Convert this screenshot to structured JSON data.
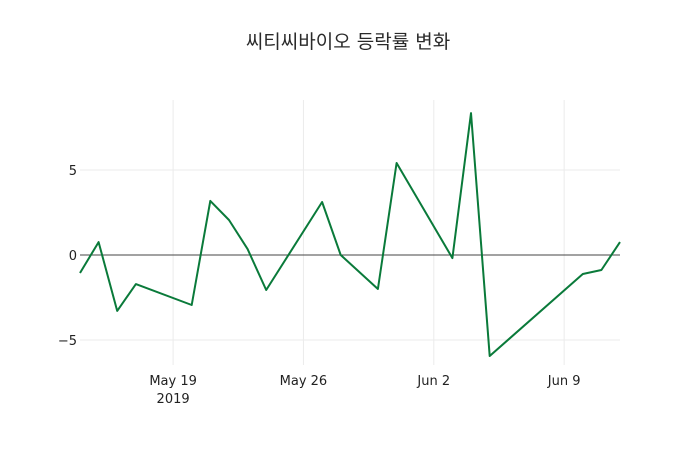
{
  "chart_data": {
    "type": "line",
    "title": "씨티씨바이오 등락률 변화",
    "xlabel": "",
    "ylabel": "",
    "x": [
      "2019-05-14",
      "2019-05-15",
      "2019-05-16",
      "2019-05-17",
      "2019-05-20",
      "2019-05-21",
      "2019-05-22",
      "2019-05-23",
      "2019-05-24",
      "2019-05-27",
      "2019-05-28",
      "2019-05-30",
      "2019-05-31",
      "2019-06-03",
      "2019-06-04",
      "2019-06-05",
      "2019-06-10",
      "2019-06-11",
      "2019-06-12"
    ],
    "series": [
      {
        "name": "등락률",
        "color": "#0a7a3a",
        "values": [
          -1.06,
          0.76,
          -3.29,
          -1.71,
          -2.94,
          3.18,
          2.06,
          0.35,
          -2.06,
          3.12,
          0.0,
          -2.0,
          5.41,
          -0.18,
          8.35,
          -5.94,
          -1.12,
          -0.88,
          0.76
        ]
      }
    ],
    "xlim": [
      "2019-05-14",
      "2019-06-12"
    ],
    "ylim": [
      -6.2,
      9.1
    ],
    "x_ticks": [
      {
        "date": "2019-05-19",
        "label": "May 19",
        "sublabel": "2019"
      },
      {
        "date": "2019-05-26",
        "label": "May 26",
        "sublabel": ""
      },
      {
        "date": "2019-06-02",
        "label": "Jun 2",
        "sublabel": ""
      },
      {
        "date": "2019-06-09",
        "label": "Jun 9",
        "sublabel": ""
      }
    ],
    "y_ticks": [
      {
        "value": 5,
        "label": "5"
      },
      {
        "value": 0,
        "label": "0"
      },
      {
        "value": -5,
        "label": "−5"
      }
    ],
    "grid": true,
    "zero_line": true,
    "legend": "none"
  },
  "colors": {
    "line": "#0a7a3a",
    "grid": "#ebebeb",
    "zero_line": "#444444",
    "text": "#222222"
  }
}
